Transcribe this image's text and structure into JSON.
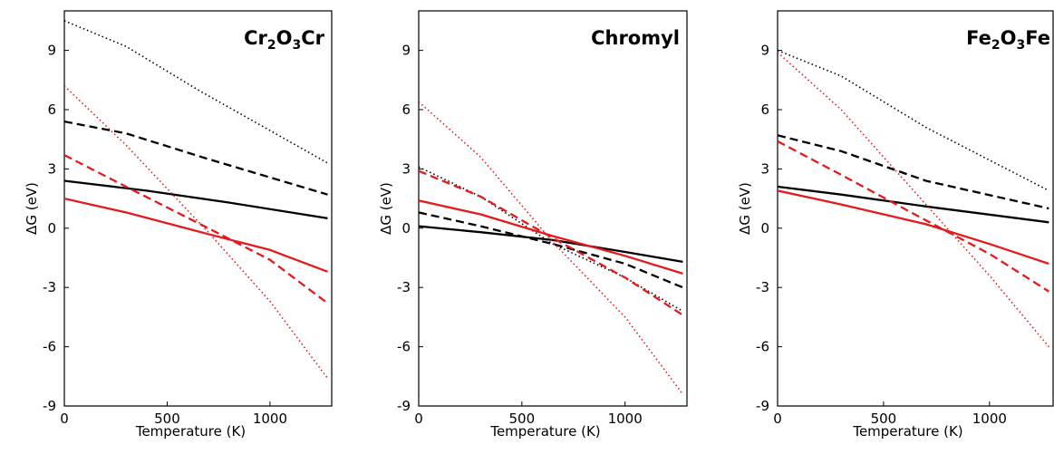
{
  "chart_data": [
    {
      "type": "line",
      "title": "Cr2O3Cr",
      "title_parts": [
        {
          "t": "Cr",
          "sub": false
        },
        {
          "t": "2",
          "sub": true
        },
        {
          "t": "O",
          "sub": false
        },
        {
          "t": "3",
          "sub": true
        },
        {
          "t": "Cr",
          "sub": false
        }
      ],
      "xlabel": "Temperature (K)",
      "ylabel": "ΔG (eV)",
      "xlim": [
        0,
        1300
      ],
      "ylim": [
        -9,
        11
      ],
      "xticks": [
        0,
        500,
        1000
      ],
      "yticks": [
        -9,
        -6,
        -3,
        0,
        3,
        6,
        9
      ],
      "grid": false,
      "series": [
        {
          "color": "#000000",
          "style": "dotted",
          "x": [
            0,
            300,
            650,
            1280
          ],
          "y": [
            10.5,
            9.2,
            7.0,
            3.3
          ]
        },
        {
          "color": "#000000",
          "style": "dashed",
          "x": [
            0,
            300,
            700,
            1280
          ],
          "y": [
            5.4,
            4.8,
            3.5,
            1.7
          ]
        },
        {
          "color": "#000000",
          "style": "solid",
          "x": [
            0,
            400,
            800,
            1280
          ],
          "y": [
            2.4,
            1.9,
            1.3,
            0.5
          ]
        },
        {
          "color": "#e41a1c",
          "style": "dotted",
          "x": [
            0,
            300,
            700,
            1000,
            1280
          ],
          "y": [
            7.2,
            4.2,
            -0.2,
            -3.7,
            -7.6
          ]
        },
        {
          "color": "#e41a1c",
          "style": "dashed",
          "x": [
            0,
            300,
            700,
            1000,
            1280
          ],
          "y": [
            3.7,
            2.1,
            0.0,
            -1.6,
            -3.8
          ]
        },
        {
          "color": "#e41a1c",
          "style": "solid",
          "x": [
            0,
            300,
            700,
            1000,
            1280
          ],
          "y": [
            1.5,
            0.8,
            -0.3,
            -1.1,
            -2.2
          ]
        }
      ]
    },
    {
      "type": "line",
      "title": "Chromyl",
      "title_parts": [
        {
          "t": "Chromyl",
          "sub": false
        }
      ],
      "xlabel": "Temperature (K)",
      "ylabel": "ΔG (eV)",
      "xlim": [
        0,
        1300
      ],
      "ylim": [
        -9,
        11
      ],
      "xticks": [
        0,
        500,
        1000
      ],
      "yticks": [
        -9,
        -6,
        -3,
        0,
        3,
        6,
        9
      ],
      "grid": false,
      "series": [
        {
          "color": "#000000",
          "style": "dotted",
          "x": [
            0,
            300,
            650,
            1000,
            1280
          ],
          "y": [
            3.1,
            1.6,
            -0.8,
            -2.5,
            -4.2
          ]
        },
        {
          "color": "#000000",
          "style": "dashed",
          "x": [
            0,
            300,
            650,
            1000,
            1280
          ],
          "y": [
            0.8,
            0.1,
            -0.8,
            -1.8,
            -3.0
          ]
        },
        {
          "color": "#000000",
          "style": "solid",
          "x": [
            0,
            300,
            650,
            1000,
            1280
          ],
          "y": [
            0.1,
            -0.2,
            -0.6,
            -1.2,
            -1.7
          ]
        },
        {
          "color": "#e41a1c",
          "style": "dotted",
          "x": [
            0,
            300,
            650,
            1000,
            1280
          ],
          "y": [
            6.4,
            3.6,
            -0.7,
            -4.5,
            -8.4
          ]
        },
        {
          "color": "#e41a1c",
          "style": "dashed",
          "x": [
            0,
            300,
            650,
            1000,
            1280
          ],
          "y": [
            2.9,
            1.6,
            -0.5,
            -2.5,
            -4.4
          ]
        },
        {
          "color": "#e41a1c",
          "style": "solid",
          "x": [
            0,
            300,
            650,
            1000,
            1280
          ],
          "y": [
            1.4,
            0.7,
            -0.4,
            -1.4,
            -2.3
          ]
        }
      ]
    },
    {
      "type": "line",
      "title": "Fe2O3Fe",
      "title_parts": [
        {
          "t": "Fe",
          "sub": false
        },
        {
          "t": "2",
          "sub": true
        },
        {
          "t": "O",
          "sub": false
        },
        {
          "t": "3",
          "sub": true
        },
        {
          "t": "Fe",
          "sub": false
        }
      ],
      "xlabel": "Temperature (K)",
      "ylabel": "ΔG (eV)",
      "xlim": [
        0,
        1300
      ],
      "ylim": [
        -9,
        11
      ],
      "xticks": [
        0,
        500,
        1000
      ],
      "yticks": [
        -9,
        -6,
        -3,
        0,
        3,
        6,
        9
      ],
      "grid": false,
      "series": [
        {
          "color": "#000000",
          "style": "dotted",
          "x": [
            0,
            300,
            700,
            1280
          ],
          "y": [
            9.0,
            7.7,
            5.1,
            1.9
          ]
        },
        {
          "color": "#000000",
          "style": "dashed",
          "x": [
            0,
            300,
            700,
            1280
          ],
          "y": [
            4.7,
            3.9,
            2.4,
            1.0
          ]
        },
        {
          "color": "#000000",
          "style": "solid",
          "x": [
            0,
            300,
            700,
            1280
          ],
          "y": [
            2.1,
            1.7,
            1.1,
            0.3
          ]
        },
        {
          "color": "#e41a1c",
          "style": "dotted",
          "x": [
            0,
            300,
            700,
            1000,
            1280
          ],
          "y": [
            8.9,
            6.0,
            1.2,
            -2.4,
            -6.0
          ]
        },
        {
          "color": "#e41a1c",
          "style": "dashed",
          "x": [
            0,
            300,
            700,
            1000,
            1280
          ],
          "y": [
            4.4,
            2.7,
            0.4,
            -1.3,
            -3.2
          ]
        },
        {
          "color": "#e41a1c",
          "style": "solid",
          "x": [
            0,
            300,
            700,
            1000,
            1280
          ],
          "y": [
            1.9,
            1.2,
            0.2,
            -0.8,
            -1.8
          ]
        }
      ]
    }
  ]
}
